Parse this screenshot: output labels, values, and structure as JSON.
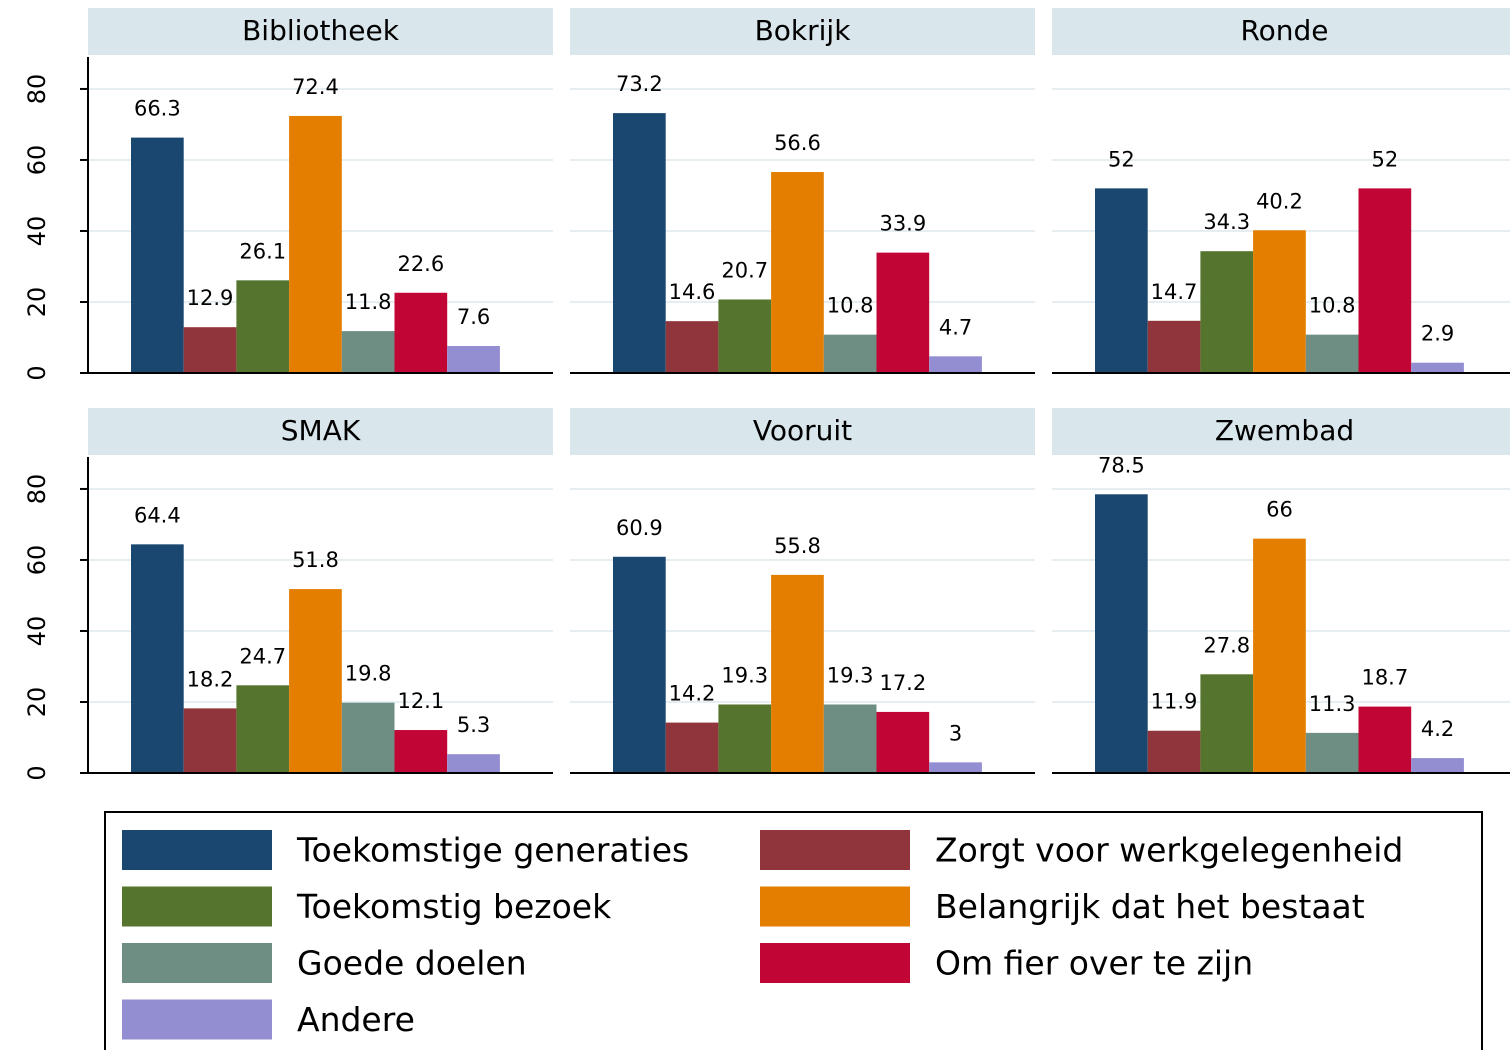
{
  "chart_data": {
    "type": "bar",
    "categories": [
      "Bibliotheek",
      "Bokrijk",
      "Ronde",
      "SMAK",
      "Vooruit",
      "Zwembad"
    ],
    "series": [
      {
        "name": "Toekomstige generaties",
        "color": "#1a476f",
        "values": [
          66.3,
          73.2,
          52,
          64.4,
          60.9,
          78.5
        ]
      },
      {
        "name": "Zorgt voor werkgelegenheid",
        "color": "#90353b",
        "values": [
          12.9,
          14.6,
          14.7,
          18.2,
          14.2,
          11.9
        ]
      },
      {
        "name": "Toekomstig bezoek",
        "color": "#55752f",
        "values": [
          26.1,
          20.7,
          34.3,
          24.7,
          19.3,
          27.8
        ]
      },
      {
        "name": "Belangrijk dat het bestaat",
        "color": "#e37e00",
        "values": [
          72.4,
          56.6,
          40.2,
          51.8,
          55.8,
          66
        ]
      },
      {
        "name": "Goede doelen",
        "color": "#6e8e84",
        "values": [
          11.8,
          10.8,
          10.8,
          19.8,
          19.3,
          11.3
        ]
      },
      {
        "name": "Om fier over te zijn",
        "color": "#c10534",
        "values": [
          22.6,
          33.9,
          52,
          12.1,
          17.2,
          18.7
        ]
      },
      {
        "name": "Andere",
        "color": "#938dd2",
        "values": [
          7.6,
          4.7,
          2.9,
          5.3,
          3,
          4.2
        ]
      }
    ],
    "ylim": [
      0,
      89
    ],
    "yticks": [
      0,
      20,
      40,
      60,
      80
    ],
    "grid": true
  }
}
